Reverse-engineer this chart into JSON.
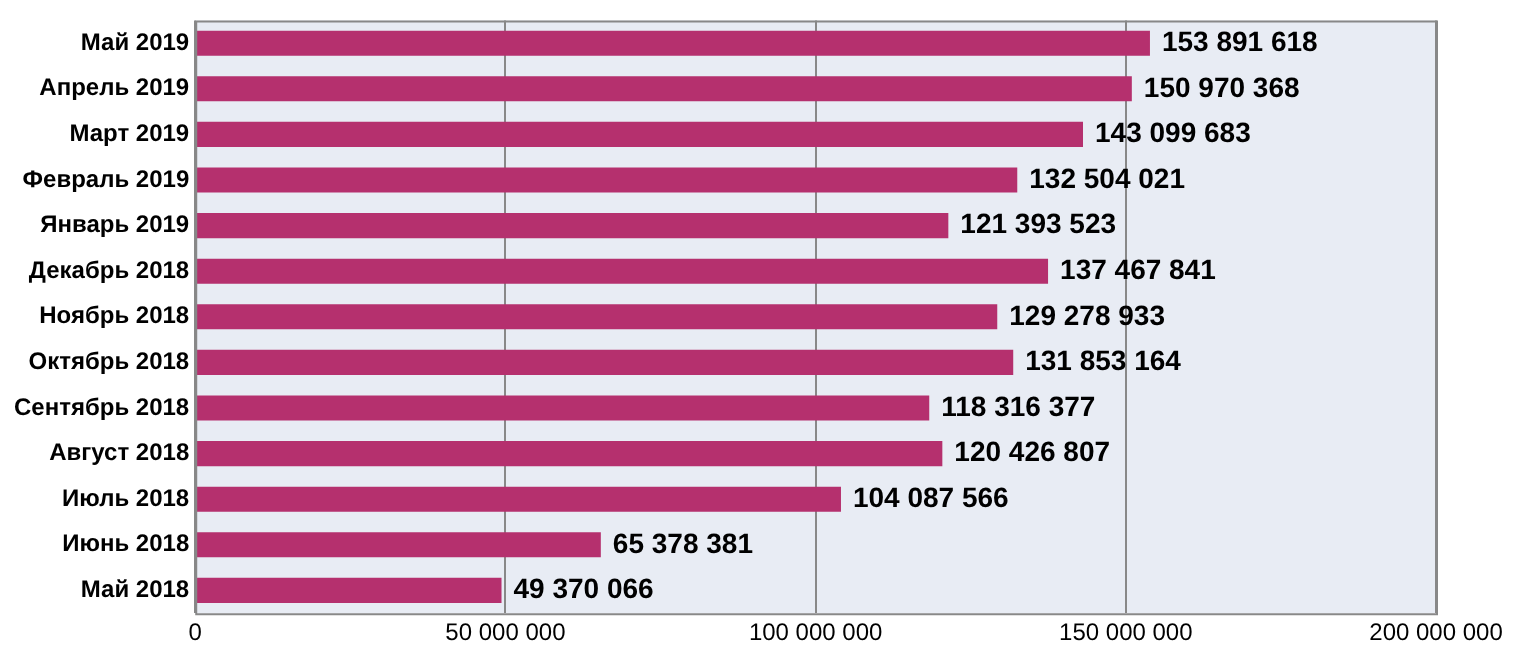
{
  "chart_data": {
    "type": "bar",
    "orientation": "horizontal",
    "categories": [
      "Май 2019",
      "Апрель 2019",
      "Март 2019",
      "Февраль 2019",
      "Январь 2019",
      "Декабрь 2018",
      "Ноябрь 2018",
      "Октябрь 2018",
      "Сентябрь 2018",
      "Август 2018",
      "Июль 2018",
      "Июнь 2018",
      "Май 2018"
    ],
    "values": [
      153891618,
      150970368,
      143099683,
      132504021,
      121393523,
      137467841,
      129278933,
      131853164,
      118316377,
      120426807,
      104087566,
      65378381,
      49370066
    ],
    "value_labels": [
      "153 891 618",
      "150 970 368",
      "143 099 683",
      "132 504 021",
      "121 393 523",
      "137 467 841",
      "129 278 933",
      "131 853 164",
      "118 316 377",
      "120 426 807",
      "104 087 566",
      "65 378 381",
      "49 370 066"
    ],
    "color": "#b5306e",
    "xlim": [
      0,
      200000000
    ],
    "xticks": [
      0,
      {
        "value": 50000000,
        "label": "50 000 000"
      },
      {
        "value": 100000000,
        "label": "100 000 000"
      },
      {
        "value": 150000000,
        "label": "150 000 000"
      },
      {
        "value": 200000000,
        "label": "200 000 000"
      }
    ],
    "grid": "x"
  }
}
